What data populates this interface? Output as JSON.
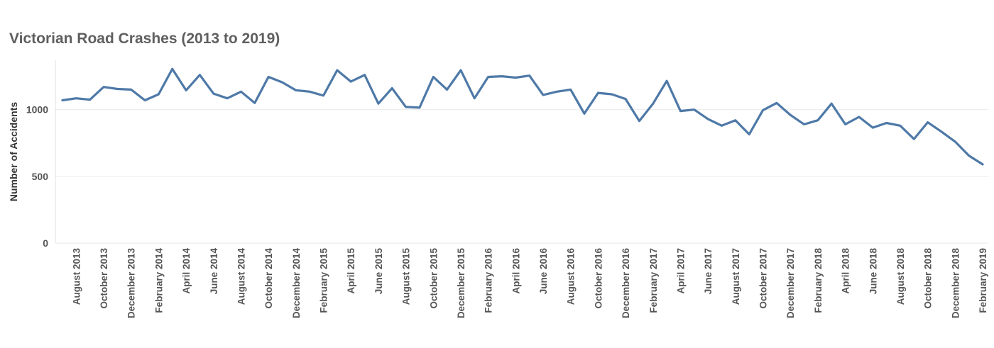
{
  "chart_data": {
    "type": "line",
    "title": "Victorian Road Crashes (2013 to 2019)",
    "xlabel": "",
    "ylabel": "Number of Accidents",
    "ylim": [
      0,
      1370
    ],
    "yticks": [
      0,
      500,
      1000
    ],
    "grid": true,
    "legend": "none",
    "line_color": "#4e79a7",
    "x_tick_labels": [
      "August 2013",
      "October 2013",
      "December 2013",
      "February 2014",
      "April 2014",
      "June 2014",
      "August 2014",
      "October 2014",
      "December 2014",
      "February 2015",
      "April 2015",
      "June 2015",
      "August 2015",
      "October 2015",
      "December 2015",
      "February 2016",
      "April 2016",
      "June 2016",
      "August 2016",
      "October 2016",
      "December 2016",
      "February 2017",
      "April 2017",
      "June 2017",
      "August 2017",
      "October 2017",
      "December 2017",
      "February 2018",
      "April 2018",
      "June 2018",
      "August 2018",
      "October 2018",
      "December 2018",
      "February 2019"
    ],
    "x": [
      "2013-07",
      "2013-08",
      "2013-09",
      "2013-10",
      "2013-11",
      "2013-12",
      "2014-01",
      "2014-02",
      "2014-03",
      "2014-04",
      "2014-05",
      "2014-06",
      "2014-07",
      "2014-08",
      "2014-09",
      "2014-10",
      "2014-11",
      "2014-12",
      "2015-01",
      "2015-02",
      "2015-03",
      "2015-04",
      "2015-05",
      "2015-06",
      "2015-07",
      "2015-08",
      "2015-09",
      "2015-10",
      "2015-11",
      "2015-12",
      "2016-01",
      "2016-02",
      "2016-03",
      "2016-04",
      "2016-05",
      "2016-06",
      "2016-07",
      "2016-08",
      "2016-09",
      "2016-10",
      "2016-11",
      "2016-12",
      "2017-01",
      "2017-02",
      "2017-03",
      "2017-04",
      "2017-05",
      "2017-06",
      "2017-07",
      "2017-08",
      "2017-09",
      "2017-10",
      "2017-11",
      "2017-12",
      "2018-01",
      "2018-02",
      "2018-03",
      "2018-04",
      "2018-05",
      "2018-06",
      "2018-07",
      "2018-08",
      "2018-09",
      "2018-10",
      "2018-11",
      "2018-12",
      "2019-01",
      "2019-02"
    ],
    "values": [
      1070,
      1085,
      1075,
      1170,
      1155,
      1150,
      1070,
      1115,
      1305,
      1145,
      1260,
      1120,
      1085,
      1135,
      1050,
      1245,
      1205,
      1145,
      1135,
      1105,
      1295,
      1210,
      1260,
      1045,
      1160,
      1020,
      1015,
      1245,
      1150,
      1295,
      1085,
      1245,
      1250,
      1240,
      1255,
      1110,
      1135,
      1150,
      970,
      1125,
      1115,
      1080,
      915,
      1045,
      1215,
      990,
      1000,
      930,
      880,
      920,
      815,
      995,
      1050,
      960,
      890,
      920,
      1045,
      890,
      945,
      865,
      900,
      880,
      780,
      905,
      835,
      760,
      655,
      590
    ]
  }
}
